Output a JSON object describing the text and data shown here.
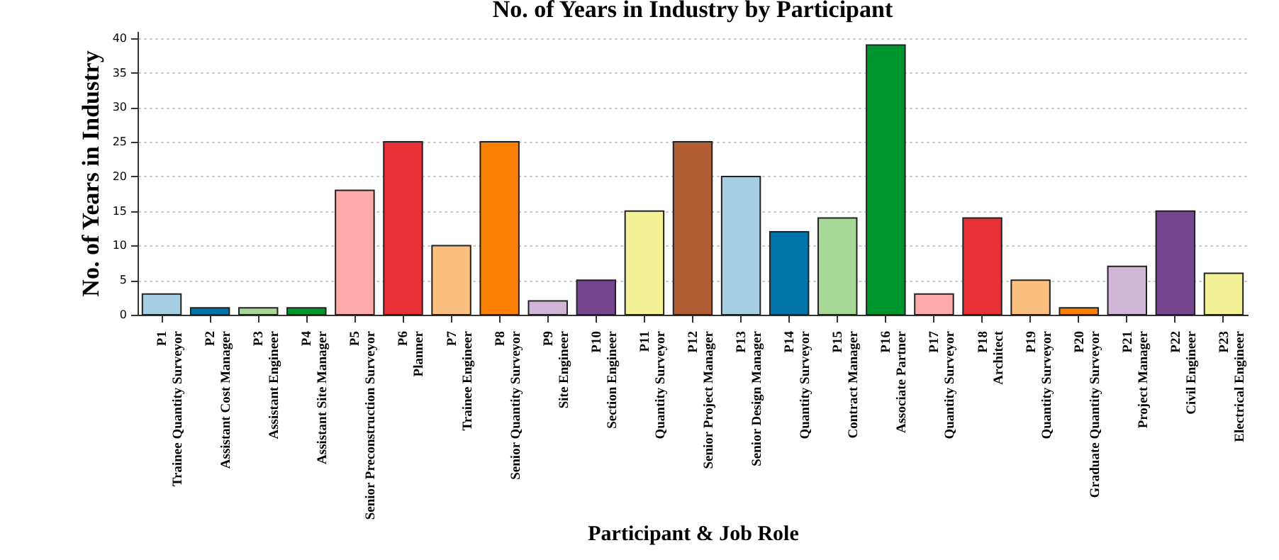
{
  "chart_data": {
    "type": "bar",
    "title": "No. of Years in Industry by Participant",
    "xlabel": "Participant & Job Role",
    "ylabel": "No. of Years in Industry",
    "categories": [
      "P1\nTrainee Quantity Surveyor",
      "P2\nAssistant Cost Manager",
      "P3\nAssistant Engineer",
      "P4\nAssistant Site Manager",
      "P5\nSenior Preconstruction Surveyor",
      "P6\nPlanner",
      "P7\nTrainee Engineer",
      "P8\nSenior Quantity Surveyor",
      "P9\nSite Engineer",
      "P10\nSection Engineer",
      "P11\nQuantity Surveyor",
      "P12\nSenior Project Manager",
      "P13\nSenior Design Manager",
      "P14\nQuantity Surveyor",
      "P15\nContract Manager",
      "P16\nAssociate Partner",
      "P17\nQuantity Surveyor",
      "P18\nArchitect",
      "P19\nQuantity Surveyor",
      "P20\nGraduate Quantity Surveyor",
      "P21\nProject Manager",
      "P22\nCivil Engineer",
      "P23\nElectrical Engineer"
    ],
    "values": [
      3,
      1,
      1,
      1,
      18,
      25,
      10,
      25,
      2,
      5,
      15,
      25,
      20,
      12,
      14,
      39,
      3,
      14,
      5,
      1,
      7,
      15,
      6
    ],
    "colors": [
      "#a6cee3",
      "#0073a8",
      "#a7d796",
      "#00962f",
      "#fdaaaa",
      "#e83037",
      "#fbc07f",
      "#fa8106",
      "#d0b6d6",
      "#764590",
      "#f4f297",
      "#b15d33",
      "#a6cee3",
      "#0073a8",
      "#a7d796",
      "#00962f",
      "#fdaaaa",
      "#e83037",
      "#fbc07f",
      "#fa8106",
      "#d0b6d6",
      "#764590",
      "#f4f297"
    ],
    "ylim": [
      0,
      41
    ],
    "yticks": [
      0,
      5,
      10,
      15,
      20,
      25,
      30,
      35,
      40
    ],
    "grid": "y"
  }
}
